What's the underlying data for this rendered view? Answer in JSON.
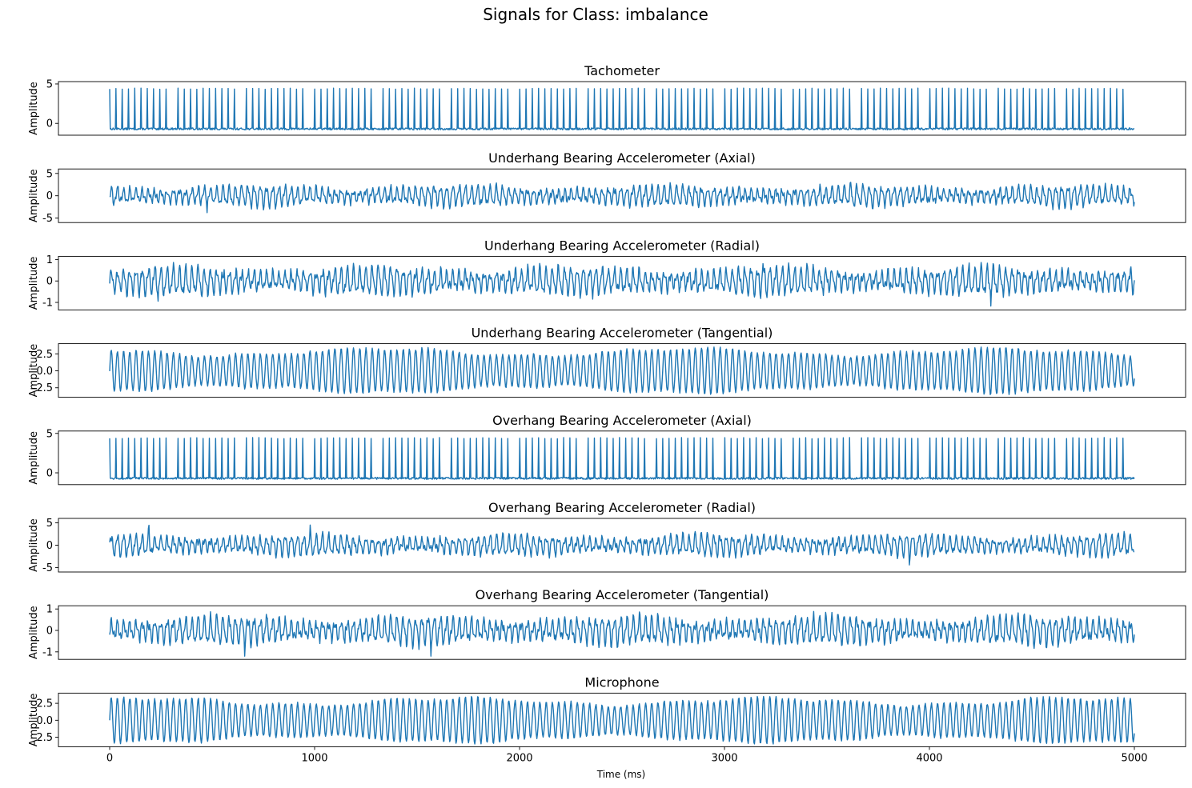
{
  "chart_data": {
    "type": "line",
    "title": "Signals for Class: imbalance",
    "xlabel": "Time (ms)",
    "xlim": [
      -250,
      5250
    ],
    "xticks": [
      0,
      1000,
      2000,
      3000,
      4000,
      5000
    ],
    "xticklabels": [
      "0",
      "1000",
      "2000",
      "3000",
      "4000",
      "5000"
    ],
    "line_color": "#1f77b4",
    "panels": [
      {
        "title": "Tachometer",
        "ylabel": "Amplitude",
        "ylim": [
          -1.5,
          5.3
        ],
        "yticks": [
          0,
          5
        ],
        "yticklabels": [
          "0",
          "5"
        ],
        "signal": {
          "kind": "pulse",
          "cycles": 165,
          "baseline": -0.7,
          "peak": 4.4,
          "max_peak": 4.9
        },
        "x_range": [
          0,
          5000
        ]
      },
      {
        "title": "Underhang Bearing Accelerometer (Axial)",
        "ylabel": "Amplitude",
        "ylim": [
          -6.0,
          6.0
        ],
        "yticks": [
          -5,
          0,
          5
        ],
        "yticklabels": [
          "-5",
          "0",
          "5"
        ],
        "signal": {
          "kind": "noisy",
          "cycles": 165,
          "amplitude": 1.6,
          "min": -5.3,
          "max": 5.3
        },
        "x_range": [
          0,
          5000
        ]
      },
      {
        "title": "Underhang Bearing Accelerometer (Radial)",
        "ylabel": "Amplitude",
        "ylim": [
          -1.35,
          1.15
        ],
        "yticks": [
          -1,
          0,
          1
        ],
        "yticklabels": [
          "-1",
          "0",
          "1"
        ],
        "signal": {
          "kind": "noisy",
          "cycles": 165,
          "amplitude": 0.45,
          "min": -1.2,
          "max": 0.95
        },
        "x_range": [
          0,
          5000
        ]
      },
      {
        "title": "Underhang Bearing Accelerometer (Tangential)",
        "ylabel": "Amplitude",
        "ylim": [
          -3.9,
          4.0
        ],
        "yticks": [
          -2.5,
          0.0,
          2.5
        ],
        "yticklabels": [
          "-2.5",
          "0.0",
          "2.5"
        ],
        "signal": {
          "kind": "sine",
          "cycles": 165,
          "amplitude": 2.8,
          "min": -3.5,
          "max": 3.5
        },
        "x_range": [
          0,
          5000
        ]
      },
      {
        "title": "Overhang Bearing Accelerometer (Axial)",
        "ylabel": "Amplitude",
        "ylim": [
          -1.5,
          5.3
        ],
        "yticks": [
          0,
          5
        ],
        "yticklabels": [
          "0",
          "5"
        ],
        "signal": {
          "kind": "pulse",
          "cycles": 165,
          "baseline": -0.7,
          "peak": 4.4,
          "max_peak": 4.9
        },
        "x_range": [
          0,
          5000
        ]
      },
      {
        "title": "Overhang Bearing Accelerometer (Radial)",
        "ylabel": "Amplitude",
        "ylim": [
          -6.0,
          6.0
        ],
        "yticks": [
          -5,
          0,
          5
        ],
        "yticklabels": [
          "-5",
          "0",
          "5"
        ],
        "signal": {
          "kind": "noisy",
          "cycles": 165,
          "amplitude": 1.6,
          "min": -5.3,
          "max": 5.3
        },
        "x_range": [
          0,
          5000
        ]
      },
      {
        "title": "Overhang Bearing Accelerometer (Tangential)",
        "ylabel": "Amplitude",
        "ylim": [
          -1.35,
          1.15
        ],
        "yticks": [
          -1,
          0,
          1
        ],
        "yticklabels": [
          "-1",
          "0",
          "1"
        ],
        "signal": {
          "kind": "noisy",
          "cycles": 165,
          "amplitude": 0.45,
          "min": -1.2,
          "max": 0.95
        },
        "x_range": [
          0,
          5000
        ]
      },
      {
        "title": "Microphone",
        "ylabel": "Amplitude",
        "ylim": [
          -3.9,
          4.0
        ],
        "yticks": [
          -2.5,
          0.0,
          2.5
        ],
        "yticklabels": [
          "-2.5",
          "0.0",
          "2.5"
        ],
        "signal": {
          "kind": "sine",
          "cycles": 165,
          "amplitude": 2.8,
          "min": -3.5,
          "max": 3.5
        },
        "x_range": [
          0,
          5000
        ]
      }
    ]
  }
}
